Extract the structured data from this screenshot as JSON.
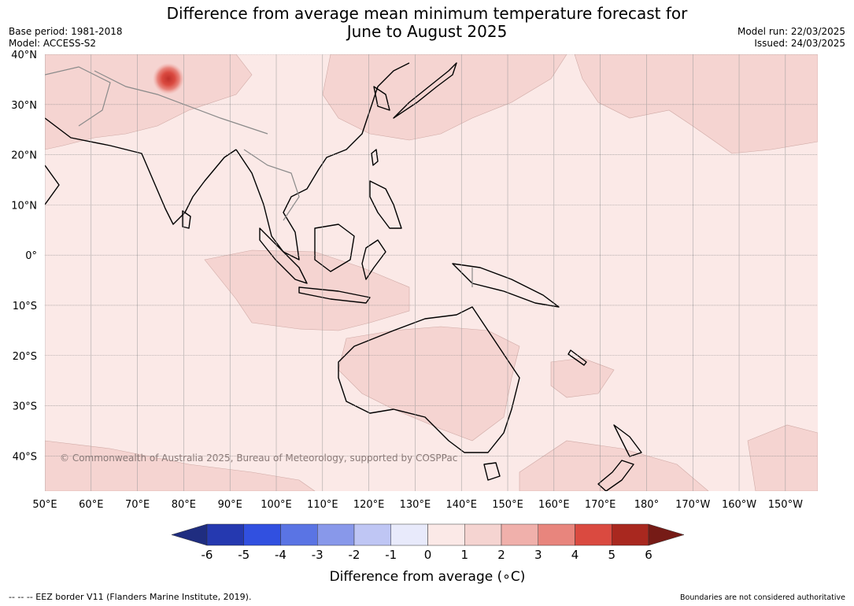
{
  "header": {
    "title_line1": "Difference from average mean minimum temperature forecast for",
    "title_line2": "June to August 2025",
    "base_period": "Base period: 1981-2018",
    "model": "Model: ACCESS-S2",
    "model_run": "Model run: 22/03/2025",
    "issued": "Issued: 24/03/2025"
  },
  "map": {
    "lat_labels": [
      "40°N",
      "30°N",
      "20°N",
      "10°N",
      "0°",
      "10°S",
      "20°S",
      "30°S",
      "40°S"
    ],
    "lat_values": [
      40,
      30,
      20,
      10,
      0,
      -10,
      -20,
      -30,
      -40
    ],
    "lon_labels": [
      "50°E",
      "60°E",
      "70°E",
      "80°E",
      "90°E",
      "100°E",
      "110°E",
      "120°E",
      "130°E",
      "140°E",
      "150°E",
      "160°E",
      "170°E",
      "180°",
      "170°W",
      "160°W",
      "150°W"
    ],
    "lon_values": [
      50,
      60,
      70,
      80,
      90,
      100,
      110,
      120,
      130,
      140,
      150,
      160,
      170,
      180,
      190,
      200,
      210
    ],
    "extent": {
      "lon_min": 50,
      "lon_max": 217,
      "lat_min": -47,
      "lat_max": 40
    },
    "copyright": "© Commonwealth of Australia 2025, Bureau of Meteorology, supported by COSPPac",
    "colors": {
      "anom_0_1": "#fbe9e7",
      "anom_1_2": "#f5d4d1",
      "ocean_base": "#fbe9e7",
      "coast": "#000000",
      "border": "#8a8a8a"
    }
  },
  "legend": {
    "title": "Difference from average (∘C)",
    "tick_labels": [
      "-6",
      "-5",
      "-4",
      "-3",
      "-2",
      "-1",
      "0",
      "1",
      "2",
      "3",
      "4",
      "5",
      "6"
    ],
    "bins": [
      {
        "from": -7,
        "to": -6,
        "color": "#1f2d80"
      },
      {
        "from": -6,
        "to": -5,
        "color": "#2539b0"
      },
      {
        "from": -5,
        "to": -4,
        "color": "#3150e0"
      },
      {
        "from": -4,
        "to": -3,
        "color": "#5a74e4"
      },
      {
        "from": -3,
        "to": -2,
        "color": "#8898ea"
      },
      {
        "from": -2,
        "to": -1,
        "color": "#bfc6f4"
      },
      {
        "from": -1,
        "to": 0,
        "color": "#e8eafb"
      },
      {
        "from": 0,
        "to": 1,
        "color": "#fbe9e7"
      },
      {
        "from": 1,
        "to": 2,
        "color": "#f5d4d1"
      },
      {
        "from": 2,
        "to": 3,
        "color": "#f0b0ab"
      },
      {
        "from": 3,
        "to": 4,
        "color": "#e8857d"
      },
      {
        "from": 4,
        "to": 5,
        "color": "#da4a40"
      },
      {
        "from": 5,
        "to": 6,
        "color": "#a9281f"
      },
      {
        "from": 6,
        "to": 7,
        "color": "#761b16"
      }
    ]
  },
  "footer": {
    "eez_note": "--  --  -- EEZ border V11 (Flanders Marine Institute, 2019).",
    "boundaries_note": "Boundaries are not considered authoritative"
  }
}
